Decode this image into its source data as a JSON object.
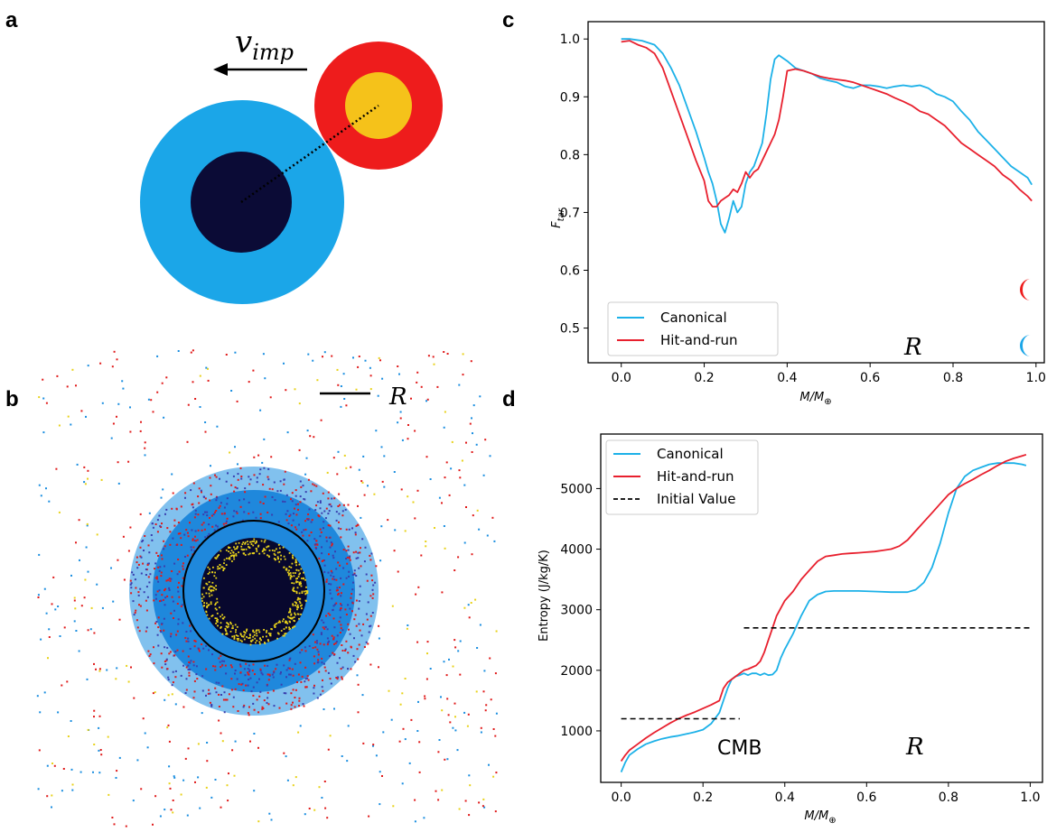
{
  "panels": {
    "a": {
      "label": "a",
      "velocity_label": "v",
      "velocity_sub": "imp",
      "colors": {
        "target_mantle": "#1ba6e8",
        "target_core": "#0b0b36",
        "impactor_mantle": "#ee1c1c",
        "impactor_core": "#f5c21a"
      }
    },
    "b": {
      "label": "b",
      "scale_label": "R",
      "colors": {
        "mantle_blue": "#1a8ee0",
        "mixed_purple": "#3a3fae",
        "red": "#e01a1a",
        "yellow": "#e8d21a",
        "core": "#08082e"
      }
    },
    "c": {
      "label": "c"
    },
    "d": {
      "label": "d"
    }
  },
  "chart_data": [
    {
      "panel": "c",
      "type": "line",
      "xlabel": "M/M",
      "xlabel_sub": "⊕",
      "ylabel": "F",
      "ylabel_sub": "tar",
      "xlim": [
        -0.08,
        1.02
      ],
      "ylim": [
        0.44,
        1.03
      ],
      "xticks": [
        "0.0",
        "0.2",
        "0.4",
        "0.6",
        "0.8",
        "1.0"
      ],
      "xtick_values": [
        0.0,
        0.2,
        0.4,
        0.6,
        0.8,
        1.0
      ],
      "yticks": [
        "0.5",
        "0.6",
        "0.7",
        "0.8",
        "0.9",
        "1.0"
      ],
      "ytick_values": [
        0.5,
        0.6,
        0.7,
        0.8,
        0.9,
        1.0
      ],
      "annotation": "R",
      "legend_position": "bottom-left",
      "moon_colors": [
        "#ee1c1c",
        "#1ba6e8"
      ],
      "series": [
        {
          "name": "Canonical",
          "color": "#1cb1e8",
          "x": [
            0.0,
            0.02,
            0.05,
            0.08,
            0.1,
            0.12,
            0.14,
            0.16,
            0.18,
            0.2,
            0.21,
            0.22,
            0.23,
            0.24,
            0.25,
            0.26,
            0.27,
            0.28,
            0.29,
            0.3,
            0.31,
            0.32,
            0.34,
            0.35,
            0.36,
            0.37,
            0.38,
            0.4,
            0.42,
            0.44,
            0.46,
            0.48,
            0.5,
            0.52,
            0.54,
            0.56,
            0.58,
            0.6,
            0.62,
            0.64,
            0.66,
            0.68,
            0.7,
            0.72,
            0.74,
            0.76,
            0.78,
            0.8,
            0.82,
            0.84,
            0.86,
            0.88,
            0.9,
            0.92,
            0.94,
            0.96,
            0.98,
            0.99
          ],
          "y": [
            1.0,
            1.0,
            0.997,
            0.99,
            0.975,
            0.95,
            0.92,
            0.88,
            0.84,
            0.795,
            0.77,
            0.75,
            0.72,
            0.68,
            0.665,
            0.69,
            0.72,
            0.7,
            0.71,
            0.75,
            0.77,
            0.78,
            0.82,
            0.87,
            0.93,
            0.965,
            0.972,
            0.962,
            0.95,
            0.945,
            0.94,
            0.932,
            0.928,
            0.925,
            0.918,
            0.915,
            0.92,
            0.92,
            0.918,
            0.915,
            0.918,
            0.92,
            0.918,
            0.92,
            0.915,
            0.905,
            0.9,
            0.892,
            0.875,
            0.86,
            0.84,
            0.825,
            0.81,
            0.795,
            0.78,
            0.77,
            0.76,
            0.748
          ]
        },
        {
          "name": "Hit-and-run",
          "color": "#e8202e",
          "x": [
            0.0,
            0.02,
            0.04,
            0.06,
            0.08,
            0.1,
            0.12,
            0.14,
            0.16,
            0.18,
            0.2,
            0.21,
            0.22,
            0.23,
            0.24,
            0.25,
            0.26,
            0.27,
            0.28,
            0.29,
            0.3,
            0.31,
            0.32,
            0.33,
            0.34,
            0.35,
            0.36,
            0.37,
            0.38,
            0.39,
            0.4,
            0.42,
            0.44,
            0.46,
            0.48,
            0.5,
            0.52,
            0.54,
            0.56,
            0.58,
            0.6,
            0.62,
            0.64,
            0.66,
            0.68,
            0.7,
            0.72,
            0.74,
            0.76,
            0.78,
            0.8,
            0.82,
            0.84,
            0.86,
            0.88,
            0.9,
            0.92,
            0.94,
            0.96,
            0.98,
            0.99
          ],
          "y": [
            0.995,
            0.997,
            0.99,
            0.985,
            0.975,
            0.95,
            0.91,
            0.87,
            0.83,
            0.79,
            0.755,
            0.72,
            0.71,
            0.71,
            0.72,
            0.725,
            0.73,
            0.74,
            0.735,
            0.75,
            0.77,
            0.76,
            0.77,
            0.775,
            0.79,
            0.805,
            0.82,
            0.835,
            0.86,
            0.9,
            0.945,
            0.948,
            0.945,
            0.94,
            0.935,
            0.932,
            0.93,
            0.928,
            0.925,
            0.92,
            0.915,
            0.91,
            0.905,
            0.898,
            0.892,
            0.885,
            0.875,
            0.87,
            0.86,
            0.85,
            0.835,
            0.82,
            0.81,
            0.8,
            0.79,
            0.78,
            0.765,
            0.755,
            0.74,
            0.728,
            0.72
          ]
        }
      ]
    },
    {
      "panel": "d",
      "type": "line",
      "xlabel": "M/M",
      "xlabel_sub": "⊕",
      "ylabel": "Entropy (J/kg/K)",
      "xlim": [
        -0.05,
        1.03
      ],
      "ylim": [
        150,
        5900
      ],
      "xticks": [
        "0.0",
        "0.2",
        "0.4",
        "0.6",
        "0.8",
        "1.0"
      ],
      "xtick_values": [
        0.0,
        0.2,
        0.4,
        0.6,
        0.8,
        1.0
      ],
      "yticks": [
        "1000",
        "2000",
        "3000",
        "4000",
        "5000"
      ],
      "ytick_values": [
        1000,
        2000,
        3000,
        4000,
        5000
      ],
      "annotations": [
        "CMB",
        "R"
      ],
      "legend_position": "top-left",
      "series": [
        {
          "name": "Canonical",
          "color": "#1cb1e8",
          "x": [
            0.0,
            0.01,
            0.02,
            0.04,
            0.06,
            0.08,
            0.1,
            0.12,
            0.14,
            0.16,
            0.18,
            0.2,
            0.22,
            0.24,
            0.25,
            0.26,
            0.27,
            0.28,
            0.29,
            0.3,
            0.31,
            0.32,
            0.33,
            0.34,
            0.35,
            0.36,
            0.37,
            0.38,
            0.39,
            0.4,
            0.42,
            0.44,
            0.46,
            0.48,
            0.5,
            0.52,
            0.55,
            0.58,
            0.62,
            0.66,
            0.7,
            0.72,
            0.74,
            0.76,
            0.78,
            0.8,
            0.82,
            0.84,
            0.86,
            0.88,
            0.9,
            0.92,
            0.94,
            0.96,
            0.98,
            0.99
          ],
          "y": [
            320,
            480,
            600,
            700,
            780,
            830,
            870,
            900,
            920,
            950,
            980,
            1020,
            1120,
            1300,
            1500,
            1700,
            1850,
            1900,
            1920,
            1950,
            1920,
            1950,
            1950,
            1920,
            1950,
            1920,
            1930,
            2000,
            2200,
            2350,
            2600,
            2900,
            3150,
            3250,
            3300,
            3310,
            3310,
            3310,
            3300,
            3290,
            3290,
            3330,
            3450,
            3700,
            4100,
            4600,
            5000,
            5200,
            5300,
            5350,
            5400,
            5420,
            5420,
            5420,
            5400,
            5380
          ]
        },
        {
          "name": "Hit-and-run",
          "color": "#e8202e",
          "x": [
            0.0,
            0.01,
            0.02,
            0.04,
            0.06,
            0.08,
            0.1,
            0.12,
            0.14,
            0.16,
            0.18,
            0.2,
            0.22,
            0.24,
            0.25,
            0.26,
            0.28,
            0.3,
            0.31,
            0.32,
            0.33,
            0.34,
            0.35,
            0.36,
            0.37,
            0.38,
            0.4,
            0.42,
            0.44,
            0.46,
            0.48,
            0.5,
            0.52,
            0.54,
            0.56,
            0.58,
            0.6,
            0.62,
            0.64,
            0.66,
            0.68,
            0.7,
            0.72,
            0.74,
            0.76,
            0.78,
            0.8,
            0.82,
            0.84,
            0.86,
            0.88,
            0.9,
            0.92,
            0.94,
            0.96,
            0.98,
            0.99
          ],
          "y": [
            500,
            600,
            680,
            780,
            880,
            970,
            1050,
            1130,
            1200,
            1260,
            1310,
            1370,
            1430,
            1500,
            1700,
            1800,
            1900,
            2000,
            2020,
            2050,
            2080,
            2150,
            2300,
            2500,
            2700,
            2900,
            3150,
            3300,
            3500,
            3650,
            3800,
            3880,
            3900,
            3920,
            3930,
            3940,
            3950,
            3960,
            3980,
            4000,
            4050,
            4150,
            4300,
            4450,
            4600,
            4750,
            4900,
            5000,
            5080,
            5150,
            5230,
            5300,
            5380,
            5450,
            5500,
            5540,
            5560
          ]
        },
        {
          "name": "Initial Value",
          "color": "#000000",
          "dashed": true,
          "segments": [
            {
              "x": [
                0.0,
                0.29
              ],
              "y": [
                1200,
                1200
              ]
            },
            {
              "x": [
                0.3,
                1.0
              ],
              "y": [
                2700,
                2700
              ]
            }
          ]
        }
      ]
    }
  ]
}
